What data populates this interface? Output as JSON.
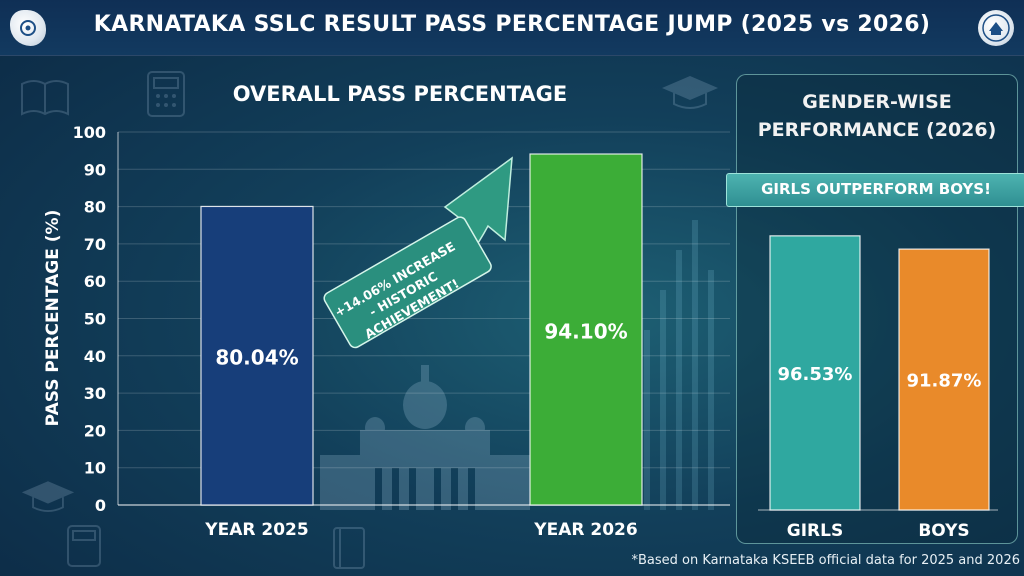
{
  "header": {
    "title": "KARNATAKA SSLC RESULT PASS PERCENTAGE JUMP (2025 vs 2026)"
  },
  "chart_data": [
    {
      "type": "bar",
      "title": "OVERALL PASS PERCENTAGE",
      "xlabel": "",
      "ylabel": "PASS PERCENTAGE (%)",
      "ylim": [
        0,
        100
      ],
      "yticks": [
        0,
        10,
        20,
        30,
        40,
        50,
        60,
        70,
        80,
        90,
        100
      ],
      "categories": [
        "YEAR 2025",
        "YEAR 2026"
      ],
      "values": [
        80.04,
        94.1
      ],
      "data_labels": [
        "80.04%",
        "94.10%"
      ],
      "colors": [
        "#173e7a",
        "#3cad37"
      ],
      "annotation": {
        "lines": [
          "+14.06% INCREASE",
          "- HISTORIC",
          "ACHIEVEMENT!"
        ]
      }
    },
    {
      "type": "bar",
      "title": "GENDER-WISE PERFORMANCE (2026)",
      "title_lines": [
        "GENDER-WISE",
        "PERFORMANCE (2026)"
      ],
      "ribbon": "GIRLS OUTPERFORM BOYS!",
      "ylim": [
        0,
        100
      ],
      "categories": [
        "GIRLS",
        "BOYS"
      ],
      "values": [
        96.53,
        91.87
      ],
      "data_labels": [
        "96.53%",
        "91.87%"
      ],
      "colors": [
        "#2fa8a0",
        "#e98a2a"
      ]
    }
  ],
  "footnote": "*Based on Karnataka KSEEB official data for 2025 and 2026"
}
